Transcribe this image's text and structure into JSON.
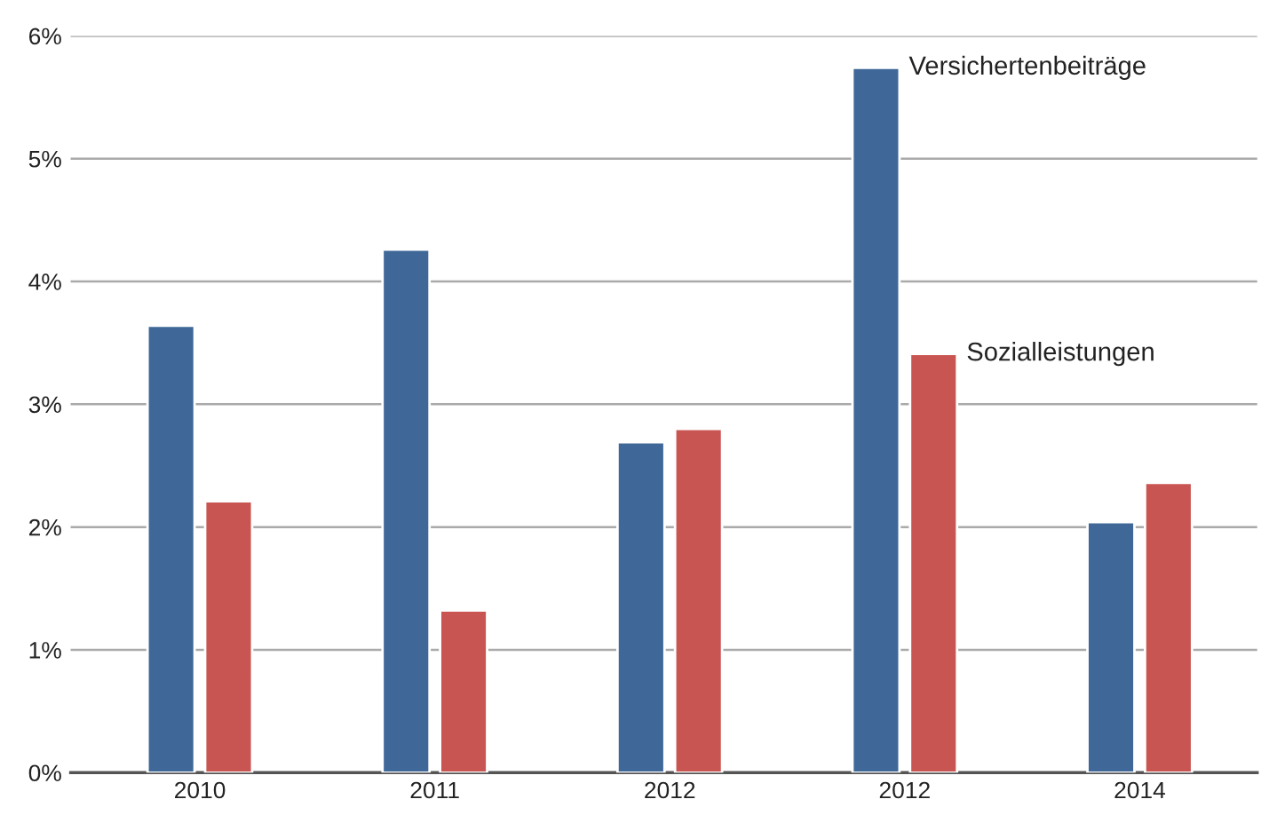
{
  "chart_data": {
    "type": "bar",
    "categories": [
      "2010",
      "2011",
      "2012",
      "2012",
      "2014"
    ],
    "series": [
      {
        "name": "Versichertenbeiträge",
        "color": "#3f6899",
        "values": [
          3.64,
          4.26,
          2.69,
          5.74,
          2.04
        ]
      },
      {
        "name": "Sozialleistungen",
        "color": "#c85552",
        "values": [
          2.21,
          1.32,
          2.8,
          3.41,
          2.36
        ]
      }
    ],
    "ylim": [
      0,
      6
    ],
    "yticks": [
      {
        "value": 0,
        "label": "0%"
      },
      {
        "value": 1,
        "label": "1%"
      },
      {
        "value": 2,
        "label": "2%"
      },
      {
        "value": 3,
        "label": "3%"
      },
      {
        "value": 4,
        "label": "4%"
      },
      {
        "value": 5,
        "label": "5%"
      },
      {
        "value": 6,
        "label": "6%"
      }
    ],
    "grid": "y",
    "legend": false
  }
}
